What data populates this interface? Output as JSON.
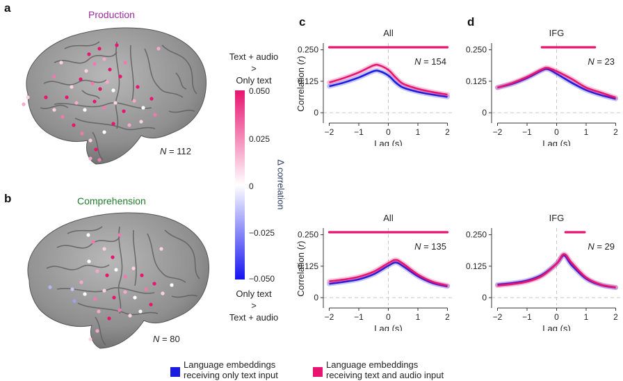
{
  "panels": {
    "a": {
      "letter": "a",
      "title": "Production",
      "title_color": "#9b2aa0",
      "n_label": "N",
      "n_value": "= 112"
    },
    "b": {
      "letter": "b",
      "title": "Comprehension",
      "title_color": "#1f7a2a",
      "n_label": "N",
      "n_value": "= 80"
    },
    "c": {
      "letter": "c"
    },
    "d": {
      "letter": "d"
    }
  },
  "colorbar": {
    "top_text": [
      "Text + audio",
      ">",
      "Only text"
    ],
    "bottom_text": [
      "Only text",
      ">",
      "Text + audio"
    ],
    "axis_label": "Δ correlation",
    "ticks": [
      "0.050",
      "0.025",
      "0",
      "−0.025",
      "−0.050"
    ],
    "colors": {
      "high": "#e8146f",
      "mid": "#ffffff",
      "low": "#1414f0"
    }
  },
  "legend": {
    "text_only": [
      "Language embeddings",
      "receiving only text input"
    ],
    "text_audio": [
      "Language embeddings",
      "receiving text and audio input"
    ],
    "colors": {
      "text_only": "#1c1ce0",
      "text_audio": "#e8146f"
    }
  },
  "chart_data": [
    {
      "type": "line",
      "id": "c-top",
      "title": "All",
      "xlabel": "Lag (s)",
      "ylabel": "Correlation (r)",
      "xlim": [
        -2.2,
        2.2
      ],
      "ylim": [
        -0.03,
        0.26
      ],
      "xticks": [
        "-2",
        "-1",
        "0",
        "1",
        "2"
      ],
      "yticks": [
        "0",
        "0.125",
        "0.250"
      ],
      "n_label": "N",
      "n_value": "= 154",
      "significance_bar": [
        -2.0,
        2.0
      ],
      "x": [
        -2.0,
        -1.5,
        -1.0,
        -0.5,
        -0.3,
        0.0,
        0.25,
        0.5,
        1.0,
        1.5,
        2.0
      ],
      "series": [
        {
          "name": "Language embeddings receiving only text input",
          "values": [
            0.105,
            0.12,
            0.14,
            0.165,
            0.165,
            0.148,
            0.12,
            0.1,
            0.083,
            0.072,
            0.063
          ]
        },
        {
          "name": "Language embeddings receiving text and audio input",
          "values": [
            0.12,
            0.138,
            0.16,
            0.188,
            0.188,
            0.17,
            0.14,
            0.115,
            0.095,
            0.082,
            0.072
          ]
        }
      ]
    },
    {
      "type": "line",
      "id": "d-top",
      "title": "IFG",
      "xlabel": "Lag (s)",
      "ylabel": "",
      "xlim": [
        -2.2,
        2.2
      ],
      "ylim": [
        -0.03,
        0.26
      ],
      "xticks": [
        "-2",
        "-1",
        "0",
        "1",
        "2"
      ],
      "yticks": [
        "0",
        "0.125",
        "0.250"
      ],
      "n_label": "N",
      "n_value": "= 23",
      "significance_bar": [
        -0.5,
        1.3
      ],
      "x": [
        -2.0,
        -1.5,
        -1.0,
        -0.5,
        -0.3,
        0.0,
        0.5,
        1.0,
        1.5,
        2.0
      ],
      "series": [
        {
          "name": "Language embeddings receiving only text input",
          "values": [
            0.1,
            0.115,
            0.138,
            0.168,
            0.173,
            0.155,
            0.12,
            0.09,
            0.07,
            0.055
          ]
        },
        {
          "name": "Language embeddings receiving text and audio input",
          "values": [
            0.1,
            0.118,
            0.142,
            0.172,
            0.178,
            0.165,
            0.135,
            0.1,
            0.08,
            0.06
          ]
        }
      ]
    },
    {
      "type": "line",
      "id": "c-bottom",
      "title": "All",
      "xlabel": "Lag (s)",
      "ylabel": "Correlation (r)",
      "xlim": [
        -2.2,
        2.2
      ],
      "ylim": [
        -0.03,
        0.26
      ],
      "xticks": [
        "-2",
        "-1",
        "0",
        "1",
        "2"
      ],
      "yticks": [
        "0",
        "0.125",
        "0.250"
      ],
      "n_label": "N",
      "n_value": "= 135",
      "significance_bar": [
        -2.0,
        2.0
      ],
      "x": [
        -2.0,
        -1.5,
        -1.0,
        -0.5,
        0.0,
        0.25,
        0.5,
        1.0,
        1.5,
        2.0
      ],
      "series": [
        {
          "name": "Language embeddings receiving only text input",
          "values": [
            0.055,
            0.063,
            0.073,
            0.093,
            0.127,
            0.14,
            0.125,
            0.085,
            0.058,
            0.045
          ]
        },
        {
          "name": "Language embeddings receiving text and audio input",
          "values": [
            0.065,
            0.072,
            0.083,
            0.103,
            0.137,
            0.15,
            0.135,
            0.092,
            0.063,
            0.048
          ]
        }
      ]
    },
    {
      "type": "line",
      "id": "d-bottom",
      "title": "IFG",
      "xlabel": "Lag (s)",
      "ylabel": "",
      "xlim": [
        -2.2,
        2.2
      ],
      "ylim": [
        -0.03,
        0.26
      ],
      "xticks": [
        "-2",
        "-1",
        "0",
        "1",
        "2"
      ],
      "yticks": [
        "0",
        "0.125",
        "0.250"
      ],
      "n_label": "N",
      "n_value": "= 29",
      "significance_bar": [
        0.3,
        0.95
      ],
      "x": [
        -2.0,
        -1.5,
        -1.0,
        -0.5,
        0.0,
        0.25,
        0.5,
        1.0,
        1.5,
        2.0
      ],
      "series": [
        {
          "name": "Language embeddings receiving only text input",
          "values": [
            0.052,
            0.058,
            0.068,
            0.09,
            0.135,
            0.168,
            0.13,
            0.075,
            0.05,
            0.04
          ]
        },
        {
          "name": "Language embeddings receiving text and audio input",
          "values": [
            0.048,
            0.054,
            0.064,
            0.086,
            0.135,
            0.173,
            0.14,
            0.08,
            0.052,
            0.041
          ]
        }
      ]
    }
  ]
}
